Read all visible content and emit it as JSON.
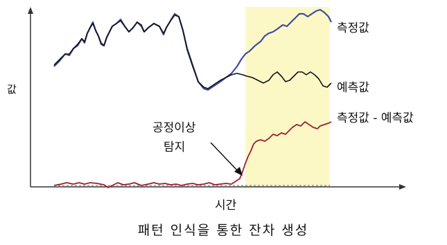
{
  "axes": {
    "y_label": "값",
    "x_label": "시간"
  },
  "legend": {
    "measured": "측정값",
    "predicted": "예측값",
    "residual": "측정값 - 예측값"
  },
  "annotation": {
    "line1": "공정이상",
    "line2": "탐지"
  },
  "caption": "패턴 인식을 통한 잔차 생성",
  "colors": {
    "measured": "#3d4a9e",
    "predicted": "#111111",
    "residual": "#a01c2c",
    "highlight": "#fbf8c6",
    "axis": "#333333"
  }
}
